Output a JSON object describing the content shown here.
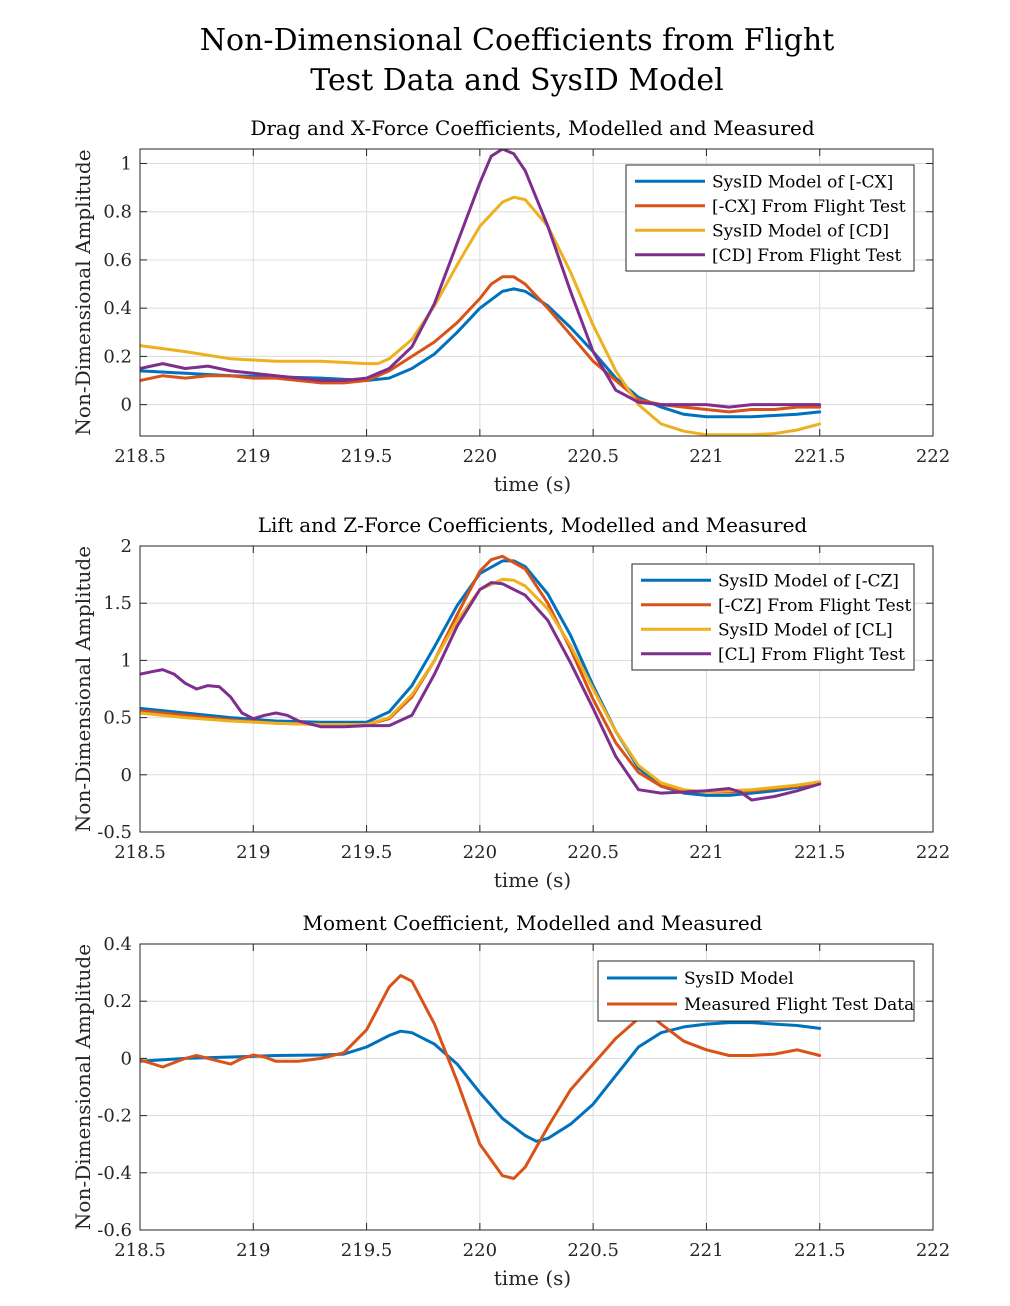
{
  "suptitle": [
    "Non-Dimensional Coefficients from Flight",
    "Test Data and SysID Model"
  ],
  "chart_data": [
    {
      "type": "line",
      "title": "Drag and X-Force Coefficients, Modelled and Measured",
      "xlabel": "time (s)",
      "ylabel": "Non-Dimensional Amplitude",
      "xlim": [
        218.5,
        222
      ],
      "ylim": [
        -0.13,
        1.06
      ],
      "xticks": [
        218.5,
        219,
        219.5,
        220,
        220.5,
        221,
        221.5,
        222
      ],
      "xtick_labels": [
        "218.5",
        "219",
        "219.5",
        "220",
        "220.5",
        "221",
        "221.5",
        "222"
      ],
      "yticks": [
        0,
        0.2,
        0.4,
        0.6,
        0.8,
        1
      ],
      "ytick_labels": [
        "0",
        "0.2",
        "0.4",
        "0.6",
        "0.8",
        "1"
      ],
      "grid": true,
      "legend_position": "top-right",
      "series": [
        {
          "name": "SysID Model of [-CX]",
          "color": "#0072BD",
          "x": [
            218.5,
            218.7,
            218.9,
            219.1,
            219.3,
            219.5,
            219.6,
            219.7,
            219.8,
            219.9,
            220.0,
            220.1,
            220.15,
            220.2,
            220.3,
            220.4,
            220.5,
            220.6,
            220.7,
            220.8,
            220.9,
            221.0,
            221.1,
            221.2,
            221.3,
            221.4,
            221.5
          ],
          "y": [
            0.14,
            0.13,
            0.12,
            0.115,
            0.11,
            0.1,
            0.11,
            0.15,
            0.21,
            0.3,
            0.4,
            0.47,
            0.48,
            0.47,
            0.41,
            0.32,
            0.22,
            0.11,
            0.03,
            -0.01,
            -0.04,
            -0.05,
            -0.05,
            -0.05,
            -0.045,
            -0.04,
            -0.03
          ]
        },
        {
          "name": "[-CX] From Flight Test",
          "color": "#D95319",
          "x": [
            218.5,
            218.6,
            218.7,
            218.8,
            218.9,
            219.0,
            219.1,
            219.2,
            219.3,
            219.4,
            219.5,
            219.6,
            219.7,
            219.8,
            219.9,
            220.0,
            220.05,
            220.1,
            220.15,
            220.2,
            220.3,
            220.4,
            220.5,
            220.6,
            220.7,
            220.8,
            220.9,
            221.0,
            221.1,
            221.2,
            221.3,
            221.4,
            221.5
          ],
          "y": [
            0.1,
            0.12,
            0.11,
            0.12,
            0.12,
            0.11,
            0.11,
            0.1,
            0.09,
            0.09,
            0.1,
            0.14,
            0.2,
            0.26,
            0.34,
            0.44,
            0.5,
            0.53,
            0.53,
            0.5,
            0.4,
            0.29,
            0.18,
            0.1,
            0.02,
            0.0,
            -0.01,
            -0.02,
            -0.03,
            -0.02,
            -0.02,
            -0.01,
            -0.01
          ]
        },
        {
          "name": "SysID Model of [CD]",
          "color": "#EDB120",
          "x": [
            218.5,
            218.7,
            218.9,
            219.1,
            219.3,
            219.5,
            219.55,
            219.6,
            219.7,
            219.8,
            219.9,
            220.0,
            220.1,
            220.15,
            220.2,
            220.3,
            220.4,
            220.5,
            220.6,
            220.7,
            220.8,
            220.9,
            221.0,
            221.1,
            221.2,
            221.3,
            221.4,
            221.5
          ],
          "y": [
            0.245,
            0.22,
            0.19,
            0.18,
            0.18,
            0.17,
            0.17,
            0.19,
            0.27,
            0.41,
            0.58,
            0.74,
            0.84,
            0.86,
            0.85,
            0.74,
            0.55,
            0.33,
            0.14,
            0.0,
            -0.08,
            -0.11,
            -0.125,
            -0.125,
            -0.125,
            -0.12,
            -0.105,
            -0.08
          ]
        },
        {
          "name": "[CD] From Flight Test",
          "color": "#7E2F8E",
          "x": [
            218.5,
            218.6,
            218.7,
            218.8,
            218.9,
            219.0,
            219.1,
            219.2,
            219.3,
            219.4,
            219.5,
            219.6,
            219.7,
            219.8,
            219.9,
            220.0,
            220.05,
            220.1,
            220.15,
            220.2,
            220.3,
            220.4,
            220.5,
            220.6,
            220.7,
            220.8,
            220.9,
            221.0,
            221.1,
            221.2,
            221.3,
            221.4,
            221.5
          ],
          "y": [
            0.15,
            0.17,
            0.15,
            0.16,
            0.14,
            0.13,
            0.12,
            0.11,
            0.1,
            0.1,
            0.11,
            0.15,
            0.24,
            0.42,
            0.67,
            0.92,
            1.03,
            1.06,
            1.04,
            0.97,
            0.74,
            0.47,
            0.22,
            0.06,
            0.01,
            0.0,
            0.0,
            0.0,
            -0.01,
            0.0,
            0.0,
            0.0,
            0.0
          ]
        }
      ]
    },
    {
      "type": "line",
      "title": "Lift and Z-Force Coefficients, Modelled and Measured",
      "xlabel": "time (s)",
      "ylabel": "Non-Dimensional Amplitude",
      "xlim": [
        218.5,
        222
      ],
      "ylim": [
        -0.5,
        2
      ],
      "xticks": [
        218.5,
        219,
        219.5,
        220,
        220.5,
        221,
        221.5,
        222
      ],
      "xtick_labels": [
        "218.5",
        "219",
        "219.5",
        "220",
        "220.5",
        "221",
        "221.5",
        "222"
      ],
      "yticks": [
        -0.5,
        0,
        0.5,
        1,
        1.5,
        2
      ],
      "ytick_labels": [
        "-0.5",
        "0",
        "0.5",
        "1",
        "1.5",
        "2"
      ],
      "grid": true,
      "legend_position": "top-right",
      "series": [
        {
          "name": "SysID Model of [-CZ]",
          "color": "#0072BD",
          "x": [
            218.5,
            218.7,
            218.9,
            219.1,
            219.3,
            219.5,
            219.6,
            219.7,
            219.8,
            219.9,
            220.0,
            220.1,
            220.15,
            220.2,
            220.3,
            220.4,
            220.5,
            220.6,
            220.7,
            220.8,
            220.9,
            221.0,
            221.1,
            221.2,
            221.3,
            221.4,
            221.5
          ],
          "y": [
            0.58,
            0.54,
            0.5,
            0.47,
            0.46,
            0.46,
            0.55,
            0.78,
            1.12,
            1.48,
            1.76,
            1.87,
            1.87,
            1.82,
            1.58,
            1.22,
            0.78,
            0.38,
            0.06,
            -0.1,
            -0.16,
            -0.18,
            -0.18,
            -0.16,
            -0.14,
            -0.11,
            -0.08
          ]
        },
        {
          "name": "[-CZ] From Flight Test",
          "color": "#D95319",
          "x": [
            218.5,
            218.7,
            218.9,
            219.1,
            219.3,
            219.5,
            219.6,
            219.7,
            219.8,
            219.9,
            220.0,
            220.05,
            220.1,
            220.2,
            220.3,
            220.4,
            220.5,
            220.6,
            220.7,
            220.8,
            220.9,
            221.0,
            221.1,
            221.2,
            221.3,
            221.4,
            221.5
          ],
          "y": [
            0.56,
            0.52,
            0.48,
            0.45,
            0.44,
            0.44,
            0.49,
            0.68,
            1.0,
            1.4,
            1.78,
            1.88,
            1.91,
            1.8,
            1.5,
            1.1,
            0.66,
            0.28,
            0.02,
            -0.1,
            -0.14,
            -0.15,
            -0.15,
            -0.14,
            -0.12,
            -0.1,
            -0.07
          ]
        },
        {
          "name": "SysID Model of [CL]",
          "color": "#EDB120",
          "x": [
            218.5,
            218.7,
            218.9,
            219.1,
            219.3,
            219.5,
            219.6,
            219.7,
            219.8,
            219.9,
            220.0,
            220.1,
            220.15,
            220.2,
            220.3,
            220.4,
            220.5,
            220.6,
            220.7,
            220.8,
            220.9,
            221.0,
            221.1,
            221.2,
            221.3,
            221.4,
            221.5
          ],
          "y": [
            0.54,
            0.5,
            0.47,
            0.45,
            0.44,
            0.44,
            0.5,
            0.7,
            1.0,
            1.35,
            1.62,
            1.71,
            1.7,
            1.65,
            1.45,
            1.13,
            0.75,
            0.38,
            0.08,
            -0.07,
            -0.13,
            -0.15,
            -0.14,
            -0.13,
            -0.11,
            -0.09,
            -0.06
          ]
        },
        {
          "name": "[CL] From Flight Test",
          "color": "#7E2F8E",
          "x": [
            218.5,
            218.55,
            218.6,
            218.65,
            218.7,
            218.75,
            218.8,
            218.85,
            218.9,
            218.95,
            219.0,
            219.05,
            219.1,
            219.15,
            219.2,
            219.3,
            219.4,
            219.5,
            219.6,
            219.7,
            219.8,
            219.9,
            220.0,
            220.05,
            220.1,
            220.2,
            220.3,
            220.4,
            220.5,
            220.6,
            220.7,
            220.8,
            220.9,
            221.0,
            221.1,
            221.15,
            221.2,
            221.3,
            221.4,
            221.5
          ],
          "y": [
            0.88,
            0.9,
            0.92,
            0.88,
            0.8,
            0.75,
            0.78,
            0.77,
            0.68,
            0.54,
            0.49,
            0.52,
            0.54,
            0.52,
            0.47,
            0.42,
            0.42,
            0.43,
            0.43,
            0.52,
            0.88,
            1.3,
            1.62,
            1.68,
            1.67,
            1.57,
            1.35,
            0.98,
            0.58,
            0.16,
            -0.13,
            -0.16,
            -0.15,
            -0.14,
            -0.12,
            -0.15,
            -0.22,
            -0.19,
            -0.14,
            -0.08
          ]
        }
      ]
    },
    {
      "type": "line",
      "title": "Moment Coefficient, Modelled and Measured",
      "xlabel": "time (s)",
      "ylabel": "Non-Dimensional Amplitude",
      "xlim": [
        218.5,
        222
      ],
      "ylim": [
        -0.6,
        0.4
      ],
      "xticks": [
        218.5,
        219,
        219.5,
        220,
        220.5,
        221,
        221.5,
        222
      ],
      "xtick_labels": [
        "218.5",
        "219",
        "219.5",
        "220",
        "220.5",
        "221",
        "221.5",
        "222"
      ],
      "yticks": [
        -0.6,
        -0.4,
        -0.2,
        0,
        0.2,
        0.4
      ],
      "ytick_labels": [
        "-0.6",
        "-0.4",
        "-0.2",
        "0",
        "0.2",
        "0.4"
      ],
      "grid": true,
      "legend_position": "top-right",
      "series": [
        {
          "name": "SysID Model",
          "color": "#0072BD",
          "x": [
            218.5,
            218.7,
            218.9,
            219.1,
            219.3,
            219.4,
            219.5,
            219.6,
            219.65,
            219.7,
            219.8,
            219.9,
            220.0,
            220.1,
            220.2,
            220.25,
            220.3,
            220.4,
            220.5,
            220.6,
            220.7,
            220.8,
            220.9,
            221.0,
            221.1,
            221.2,
            221.3,
            221.4,
            221.5
          ],
          "y": [
            -0.01,
            0.0,
            0.005,
            0.01,
            0.012,
            0.015,
            0.04,
            0.08,
            0.095,
            0.09,
            0.05,
            -0.02,
            -0.12,
            -0.21,
            -0.27,
            -0.29,
            -0.28,
            -0.23,
            -0.16,
            -0.06,
            0.04,
            0.09,
            0.11,
            0.12,
            0.125,
            0.125,
            0.12,
            0.115,
            0.105
          ]
        },
        {
          "name": "Measured Flight Test Data",
          "color": "#D95319",
          "x": [
            218.5,
            218.6,
            218.7,
            218.75,
            218.8,
            218.9,
            218.95,
            219.0,
            219.05,
            219.1,
            219.2,
            219.3,
            219.4,
            219.5,
            219.6,
            219.65,
            219.7,
            219.8,
            219.9,
            220.0,
            220.1,
            220.15,
            220.2,
            220.3,
            220.4,
            220.5,
            220.6,
            220.7,
            220.75,
            220.8,
            220.9,
            221.0,
            221.1,
            221.2,
            221.3,
            221.4,
            221.5
          ],
          "y": [
            -0.005,
            -0.03,
            0.0,
            0.01,
            0.0,
            -0.02,
            0.0,
            0.012,
            0.005,
            -0.01,
            -0.01,
            0.0,
            0.02,
            0.1,
            0.25,
            0.29,
            0.27,
            0.12,
            -0.08,
            -0.3,
            -0.41,
            -0.42,
            -0.38,
            -0.24,
            -0.11,
            -0.02,
            0.07,
            0.14,
            0.155,
            0.12,
            0.06,
            0.03,
            0.01,
            0.01,
            0.015,
            0.03,
            0.01
          ]
        }
      ]
    }
  ]
}
